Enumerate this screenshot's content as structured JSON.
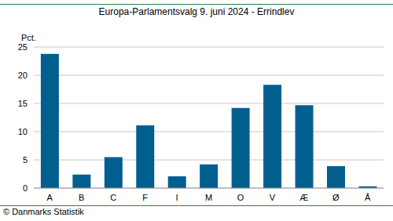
{
  "chart_data": {
    "type": "bar",
    "title": "Europa-Parlamentsvalg 9. juni 2024 - Errindlev",
    "y_label": "Pct.",
    "source": "© Danmarks Statistik",
    "categories": [
      "A",
      "B",
      "C",
      "F",
      "I",
      "M",
      "O",
      "V",
      "Æ",
      "Ø",
      "Å"
    ],
    "values": [
      23.8,
      2.4,
      5.5,
      11.1,
      2.1,
      4.2,
      14.2,
      18.3,
      14.7,
      3.9,
      0.3
    ],
    "color": "#005f8f",
    "ylim": [
      0,
      25
    ],
    "yticks": [
      0,
      5,
      10,
      15,
      20,
      25
    ],
    "grid": true
  }
}
